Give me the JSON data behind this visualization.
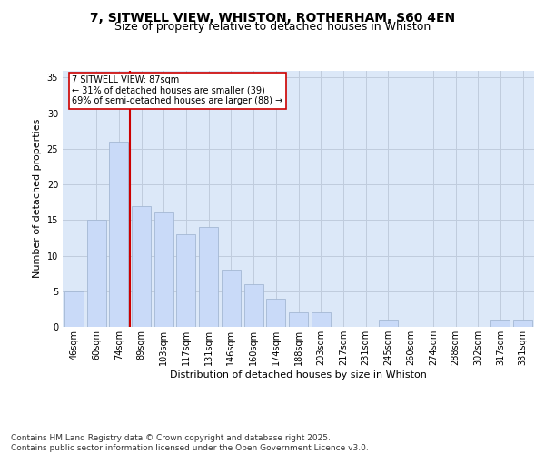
{
  "title1": "7, SITWELL VIEW, WHISTON, ROTHERHAM, S60 4EN",
  "title2": "Size of property relative to detached houses in Whiston",
  "xlabel": "Distribution of detached houses by size in Whiston",
  "ylabel": "Number of detached properties",
  "categories": [
    "46sqm",
    "60sqm",
    "74sqm",
    "89sqm",
    "103sqm",
    "117sqm",
    "131sqm",
    "146sqm",
    "160sqm",
    "174sqm",
    "188sqm",
    "203sqm",
    "217sqm",
    "231sqm",
    "245sqm",
    "260sqm",
    "274sqm",
    "288sqm",
    "302sqm",
    "317sqm",
    "331sqm"
  ],
  "values": [
    5,
    15,
    26,
    17,
    16,
    13,
    14,
    8,
    6,
    4,
    2,
    2,
    0,
    0,
    1,
    0,
    0,
    0,
    0,
    1,
    1
  ],
  "bar_color": "#c9daf8",
  "bar_edge_color": "#a4b8d4",
  "bar_width": 0.85,
  "vline_x": 2.5,
  "vline_color": "#cc0000",
  "annotation_text": "7 SITWELL VIEW: 87sqm\n← 31% of detached houses are smaller (39)\n69% of semi-detached houses are larger (88) →",
  "annotation_box_color": "#ffffff",
  "annotation_box_edge": "#cc0000",
  "ylim": [
    0,
    36
  ],
  "yticks": [
    0,
    5,
    10,
    15,
    20,
    25,
    30,
    35
  ],
  "grid_color": "#c0ccdd",
  "bg_color": "#dce8f8",
  "footnote": "Contains HM Land Registry data © Crown copyright and database right 2025.\nContains public sector information licensed under the Open Government Licence v3.0.",
  "title_fontsize": 10,
  "subtitle_fontsize": 9,
  "tick_fontsize": 7,
  "label_fontsize": 8,
  "footnote_fontsize": 6.5
}
